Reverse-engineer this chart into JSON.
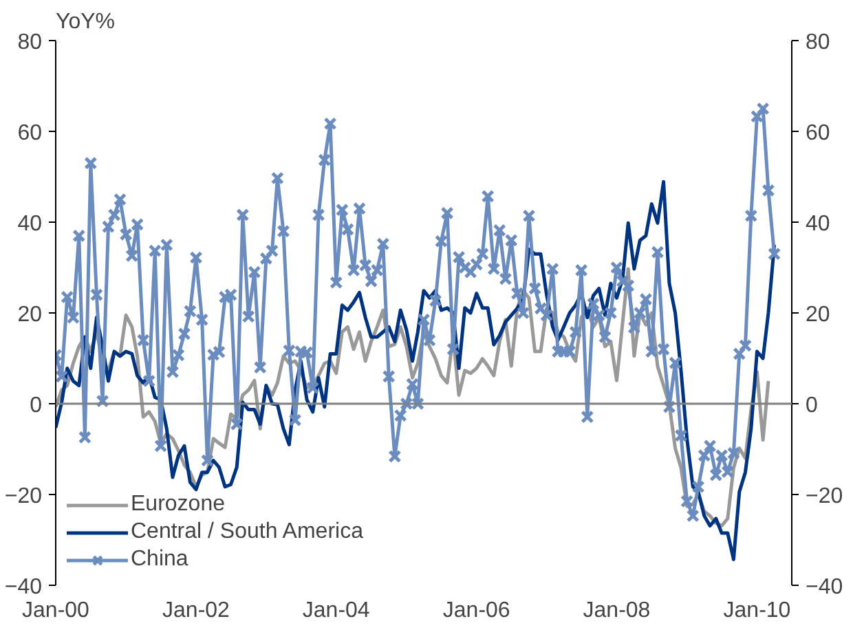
{
  "chart_data": {
    "type": "line",
    "ylabel": "YoY%",
    "x": [
      "2000-01",
      "2000-02",
      "2000-03",
      "2000-04",
      "2000-05",
      "2000-06",
      "2000-07",
      "2000-08",
      "2000-09",
      "2000-10",
      "2000-11",
      "2000-12",
      "2001-01",
      "2001-02",
      "2001-03",
      "2001-04",
      "2001-05",
      "2001-06",
      "2001-07",
      "2001-08",
      "2001-09",
      "2001-10",
      "2001-11",
      "2001-12",
      "2002-01",
      "2002-02",
      "2002-03",
      "2002-04",
      "2002-05",
      "2002-06",
      "2002-07",
      "2002-08",
      "2002-09",
      "2002-10",
      "2002-11",
      "2002-12",
      "2003-01",
      "2003-02",
      "2003-03",
      "2003-04",
      "2003-05",
      "2003-06",
      "2003-07",
      "2003-08",
      "2003-09",
      "2003-10",
      "2003-11",
      "2003-12",
      "2004-01",
      "2004-02",
      "2004-03",
      "2004-04",
      "2004-05",
      "2004-06",
      "2004-07",
      "2004-08",
      "2004-09",
      "2004-10",
      "2004-11",
      "2004-12",
      "2005-01",
      "2005-02",
      "2005-03",
      "2005-04",
      "2005-05",
      "2005-06",
      "2005-07",
      "2005-08",
      "2005-09",
      "2005-10",
      "2005-11",
      "2005-12",
      "2006-01",
      "2006-02",
      "2006-03",
      "2006-04",
      "2006-05",
      "2006-06",
      "2006-07",
      "2006-08",
      "2006-09",
      "2006-10",
      "2006-11",
      "2006-12",
      "2007-01",
      "2007-02",
      "2007-03",
      "2007-04",
      "2007-05",
      "2007-06",
      "2007-07",
      "2007-08",
      "2007-09",
      "2007-10",
      "2007-11",
      "2007-12",
      "2008-01",
      "2008-02",
      "2008-03",
      "2008-04",
      "2008-05",
      "2008-06",
      "2008-07",
      "2008-08",
      "2008-09",
      "2008-10",
      "2008-11",
      "2008-12",
      "2009-01",
      "2009-02",
      "2009-03",
      "2009-04",
      "2009-05",
      "2009-06",
      "2009-07",
      "2009-08",
      "2009-09",
      "2009-10",
      "2009-11",
      "2009-12",
      "2010-01",
      "2010-02",
      "2010-03",
      "2010-04"
    ],
    "series": [
      {
        "name": "Eurozone",
        "color": "#999999",
        "values": [
          -0.7,
          3,
          4,
          8.9,
          12.6,
          14.7,
          11.5,
          15.8,
          9.4,
          7.3,
          11.5,
          10.5,
          19.5,
          16.9,
          10.5,
          -2.9,
          -1.8,
          -3.9,
          -8.7,
          -6.6,
          -7.7,
          -10.3,
          -13.5,
          -15.1,
          -18.3,
          -15.7,
          -15.1,
          -7.7,
          -8.7,
          -9.6,
          -2.3,
          -3.4,
          1.9,
          3,
          5.1,
          -5.5,
          4,
          1.9,
          4.6,
          10.5,
          8.9,
          9.4,
          7.3,
          3.5,
          4,
          6.2,
          8.9,
          9.4,
          6.7,
          15.8,
          16.9,
          12,
          15.8,
          9.4,
          13.7,
          16.9,
          20.6,
          12.6,
          13.1,
          16.9,
          12.6,
          5.7,
          8.9,
          15.8,
          12.6,
          9.9,
          6.2,
          4.6,
          14.7,
          1.9,
          7.3,
          6.7,
          7.8,
          9.9,
          8.3,
          6.2,
          13.7,
          18.5,
          8.3,
          21,
          24.9,
          23.3,
          11.5,
          11.5,
          21,
          20,
          15.8,
          14.7,
          11.5,
          9.4,
          19,
          21,
          16.9,
          19,
          12.6,
          13.7,
          5.1,
          17.9,
          29.7,
          10.5,
          20,
          17.4,
          20,
          8.3,
          4,
          -0.2,
          -9.8,
          -14.1,
          -22.6,
          -22.1,
          -19.9,
          -23.7,
          -24.7,
          -26.3,
          -26.9,
          -25.3,
          -14.1,
          -9.8,
          -12,
          -1.3,
          7,
          -8,
          5,
          null
        ]
      },
      {
        "name": "Central / South America",
        "color": "#003380",
        "values": [
          -5.3,
          0.3,
          7.8,
          5,
          4,
          14.7,
          7.8,
          19,
          12.6,
          5,
          11.5,
          10.5,
          11.5,
          11,
          6.2,
          4.6,
          6.2,
          1.4,
          0.9,
          -5.5,
          -16.2,
          -11.4,
          -9.3,
          -17.3,
          -18.9,
          -15.1,
          -15.1,
          -12.5,
          -14,
          -18.3,
          -17.8,
          -14,
          0.3,
          -1.3,
          -1.3,
          -4.5,
          4,
          0,
          -0.2,
          -5.5,
          -9,
          3,
          9.4,
          0.9,
          -1.8,
          5.7,
          -0.7,
          11,
          11,
          21.7,
          20.6,
          22.4,
          24.5,
          19,
          14.7,
          14.7,
          15.8,
          16.9,
          13.7,
          20.6,
          16.3,
          9.4,
          15.8,
          24.9,
          23.3,
          24.9,
          20.6,
          21.1,
          20,
          7.8,
          21.1,
          20,
          24.3,
          21.1,
          21.1,
          13,
          15,
          18,
          19.5,
          21,
          23,
          34,
          33,
          33,
          24,
          17,
          14,
          17,
          20,
          21.7,
          24.3,
          19,
          23.8,
          25.4,
          19.5,
          26.5,
          23.3,
          27.5,
          39.8,
          29.7,
          36,
          37,
          44,
          39.8,
          48.9,
          26.5,
          20,
          7.3,
          -7.7,
          -18.3,
          -19.4,
          -24.7,
          -26.9,
          -25.3,
          -28.5,
          -28.5,
          -34.3,
          -19.4,
          -15.1,
          -5.5,
          11.5,
          10,
          20,
          35
        ]
      },
      {
        "name": "China",
        "color": "#6b8cbe",
        "marker": "cross",
        "values": [
          10.7,
          6,
          23.5,
          19,
          37,
          -7.4,
          53,
          24,
          0.6,
          39,
          41.6,
          45,
          37.3,
          32.6,
          39.5,
          14,
          5,
          33.7,
          -9.3,
          35,
          7,
          10.7,
          15.4,
          20.4,
          32.2,
          18.5,
          -12.5,
          10.8,
          11.4,
          23.5,
          24,
          -4.5,
          41.6,
          19.2,
          29,
          8,
          32,
          33.7,
          49.7,
          38,
          11.7,
          -3.6,
          11.5,
          11.3,
          3.5,
          41.6,
          53.7,
          61.7,
          26.7,
          42.7,
          38.4,
          29.4,
          43,
          30.5,
          27,
          29.4,
          35.2,
          6,
          -11.6,
          -2.6,
          0,
          4.3,
          0,
          18.5,
          14,
          22.7,
          35.8,
          42,
          12,
          32.3,
          30,
          29,
          30.7,
          33,
          45.7,
          29.7,
          38.2,
          27.5,
          36,
          24.3,
          20,
          41.4,
          25.4,
          21,
          19.5,
          29.7,
          11.5,
          11.5,
          11.5,
          15.8,
          29.4,
          -2.9,
          22,
          19.5,
          14.7,
          20,
          30,
          27,
          26,
          16.8,
          20,
          23,
          11.5,
          33.4,
          12,
          -0.7,
          9,
          -7,
          -21.5,
          -24.7,
          -18.3,
          -11.4,
          -9.3,
          -15.7,
          -11.4,
          -15,
          -10.9,
          11,
          12.8,
          41.4,
          63.3,
          65,
          47,
          33
        ]
      }
    ],
    "xlim": [
      "2000-01",
      "2010-07"
    ],
    "xticks": [
      {
        "value": "2000-01",
        "label": "Jan-00"
      },
      {
        "value": "2002-01",
        "label": "Jan-02"
      },
      {
        "value": "2004-01",
        "label": "Jan-04"
      },
      {
        "value": "2006-01",
        "label": "Jan-06"
      },
      {
        "value": "2008-01",
        "label": "Jan-08"
      },
      {
        "value": "2010-01",
        "label": "Jan-10"
      }
    ],
    "ylim": [
      -40,
      80
    ],
    "yticks": [
      -40,
      -20,
      0,
      20,
      40,
      60,
      80
    ],
    "y2lim": [
      -40,
      80
    ],
    "y2ticks": [
      -40,
      -20,
      0,
      20,
      40,
      60,
      80
    ],
    "ref_lines": [
      {
        "axis": "y",
        "value": 0,
        "color": "#808080"
      }
    ],
    "grid": false,
    "legend": "bottom left",
    "marker": "none",
    "line_style": "solid"
  }
}
